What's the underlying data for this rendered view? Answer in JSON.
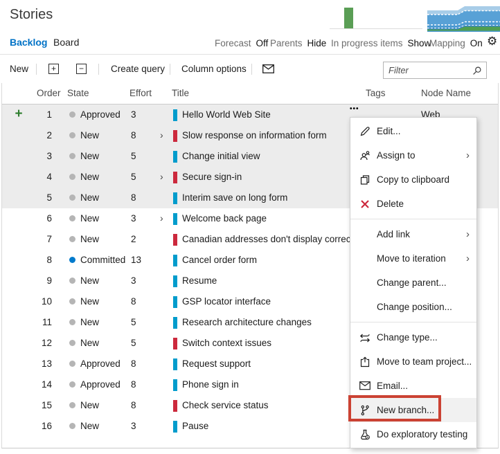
{
  "page": {
    "title": "Stories"
  },
  "tabs": [
    {
      "label": "Backlog",
      "active": true
    },
    {
      "label": "Board",
      "active": false
    }
  ],
  "view_controls": [
    {
      "label": "Forecast",
      "value": "Off"
    },
    {
      "label": "Parents",
      "value": "Hide"
    },
    {
      "label": "In progress items",
      "value": "Show"
    },
    {
      "label": "Mapping",
      "value": "On"
    }
  ],
  "toolbar": {
    "new_label": "New",
    "create_query_label": "Create query",
    "column_options_label": "Column options",
    "filter_placeholder": "Filter"
  },
  "icons": {
    "gear": "⚙",
    "expand_all": "+",
    "collapse_all": "−",
    "ellipsis": "•••",
    "submenu_chevron": "›",
    "expand_chevron": "›",
    "add_row": "+"
  },
  "colors": {
    "accent_blue": "#0072c6",
    "story_blue": "#009ccc",
    "bug_red": "#cc293d",
    "committed_blue": "#007acc",
    "neutral_dot": "#b5b5b5",
    "selected_row_bg": "#ececec",
    "callout_red": "#cb4233",
    "mini_bar_green": "#5a9e55"
  },
  "mini_charts": {
    "in_progress_bar": {
      "bar_height_pct": 90,
      "color": "#5a9e55"
    },
    "cumulative_flow": {
      "bands": [
        "#a8cde8",
        "#58a1d6",
        "#4d9ad2",
        "#3c88c4",
        "#4f9e4f"
      ]
    }
  },
  "grid": {
    "columns": [
      "Order",
      "State",
      "Effort",
      "Title",
      "Tags",
      "Node Name"
    ],
    "rows": [
      {
        "order": "1",
        "state": "Approved",
        "state_color": "#b5b5b5",
        "effort": "3",
        "has_children": false,
        "type_color": "#009ccc",
        "title": "Hello World Web Site",
        "node_name": "Web",
        "selected": true,
        "show_add_button": true,
        "show_menu_trigger": true
      },
      {
        "order": "2",
        "state": "New",
        "state_color": "#b5b5b5",
        "effort": "8",
        "has_children": true,
        "type_color": "#cc293d",
        "title": "Slow response on information form",
        "node_name": "",
        "selected": true,
        "show_add_button": false,
        "show_menu_trigger": false
      },
      {
        "order": "3",
        "state": "New",
        "state_color": "#b5b5b5",
        "effort": "5",
        "has_children": false,
        "type_color": "#009ccc",
        "title": "Change initial view",
        "node_name": "",
        "selected": true,
        "show_add_button": false,
        "show_menu_trigger": false
      },
      {
        "order": "4",
        "state": "New",
        "state_color": "#b5b5b5",
        "effort": "5",
        "has_children": true,
        "type_color": "#cc293d",
        "title": "Secure sign-in",
        "node_name": "",
        "selected": true,
        "show_add_button": false,
        "show_menu_trigger": false
      },
      {
        "order": "5",
        "state": "New",
        "state_color": "#b5b5b5",
        "effort": "8",
        "has_children": false,
        "type_color": "#009ccc",
        "title": "Interim save on long form",
        "node_name": "",
        "selected": true,
        "show_add_button": false,
        "show_menu_trigger": false
      },
      {
        "order": "6",
        "state": "New",
        "state_color": "#b5b5b5",
        "effort": "3",
        "has_children": true,
        "type_color": "#009ccc",
        "title": "Welcome back page",
        "node_name": "",
        "selected": false,
        "show_add_button": false,
        "show_menu_trigger": false
      },
      {
        "order": "7",
        "state": "New",
        "state_color": "#b5b5b5",
        "effort": "2",
        "has_children": false,
        "type_color": "#cc293d",
        "title": "Canadian addresses don't display correctly",
        "node_name": "",
        "selected": false,
        "show_add_button": false,
        "show_menu_trigger": false
      },
      {
        "order": "8",
        "state": "Committed",
        "state_color": "#007acc",
        "effort": "13",
        "has_children": false,
        "type_color": "#009ccc",
        "title": "Cancel order form",
        "node_name": "",
        "selected": false,
        "show_add_button": false,
        "show_menu_trigger": false
      },
      {
        "order": "9",
        "state": "New",
        "state_color": "#b5b5b5",
        "effort": "3",
        "has_children": false,
        "type_color": "#009ccc",
        "title": "Resume",
        "node_name": "",
        "selected": false,
        "show_add_button": false,
        "show_menu_trigger": false
      },
      {
        "order": "10",
        "state": "New",
        "state_color": "#b5b5b5",
        "effort": "8",
        "has_children": false,
        "type_color": "#009ccc",
        "title": "GSP locator interface",
        "node_name": "",
        "selected": false,
        "show_add_button": false,
        "show_menu_trigger": false
      },
      {
        "order": "11",
        "state": "New",
        "state_color": "#b5b5b5",
        "effort": "5",
        "has_children": false,
        "type_color": "#009ccc",
        "title": "Research architecture changes",
        "node_name": "",
        "selected": false,
        "show_add_button": false,
        "show_menu_trigger": false
      },
      {
        "order": "12",
        "state": "New",
        "state_color": "#b5b5b5",
        "effort": "5",
        "has_children": false,
        "type_color": "#cc293d",
        "title": "Switch context issues",
        "node_name": "",
        "selected": false,
        "show_add_button": false,
        "show_menu_trigger": false
      },
      {
        "order": "13",
        "state": "Approved",
        "state_color": "#b5b5b5",
        "effort": "8",
        "has_children": false,
        "type_color": "#009ccc",
        "title": "Request support",
        "node_name": "",
        "selected": false,
        "show_add_button": false,
        "show_menu_trigger": false
      },
      {
        "order": "14",
        "state": "Approved",
        "state_color": "#b5b5b5",
        "effort": "8",
        "has_children": false,
        "type_color": "#009ccc",
        "title": "Phone sign in",
        "node_name": "",
        "selected": false,
        "show_add_button": false,
        "show_menu_trigger": false
      },
      {
        "order": "15",
        "state": "New",
        "state_color": "#b5b5b5",
        "effort": "8",
        "has_children": false,
        "type_color": "#cc293d",
        "title": "Check service status",
        "node_name": "",
        "selected": false,
        "show_add_button": false,
        "show_menu_trigger": false
      },
      {
        "order": "16",
        "state": "New",
        "state_color": "#b5b5b5",
        "effort": "3",
        "has_children": false,
        "type_color": "#009ccc",
        "title": "Pause",
        "node_name": "",
        "selected": false,
        "show_add_button": false,
        "show_menu_trigger": false
      }
    ]
  },
  "context_menu": {
    "items": [
      {
        "label": "Edit...",
        "icon": "pencil-icon",
        "submenu": false
      },
      {
        "label": "Assign to",
        "icon": "person-icon",
        "submenu": true
      },
      {
        "label": "Copy to clipboard",
        "icon": "copy-icon",
        "submenu": false
      },
      {
        "label": "Delete",
        "icon": "delete-x-icon",
        "submenu": false
      },
      {
        "separator": true
      },
      {
        "label": "Add link",
        "icon": null,
        "submenu": true
      },
      {
        "label": "Move to iteration",
        "icon": null,
        "submenu": true
      },
      {
        "label": "Change parent...",
        "icon": null,
        "submenu": false
      },
      {
        "label": "Change position...",
        "icon": null,
        "submenu": false
      },
      {
        "separator": true
      },
      {
        "label": "Change type...",
        "icon": "swap-arrows-icon",
        "submenu": false
      },
      {
        "label": "Move to team project...",
        "icon": "move-project-icon",
        "submenu": false
      },
      {
        "label": "Email...",
        "icon": "email-icon",
        "submenu": false
      },
      {
        "label": "New branch...",
        "icon": "branch-icon",
        "submenu": false,
        "highlighted": true
      },
      {
        "label": "Do exploratory testing",
        "icon": "beaker-icon",
        "submenu": false
      }
    ]
  }
}
